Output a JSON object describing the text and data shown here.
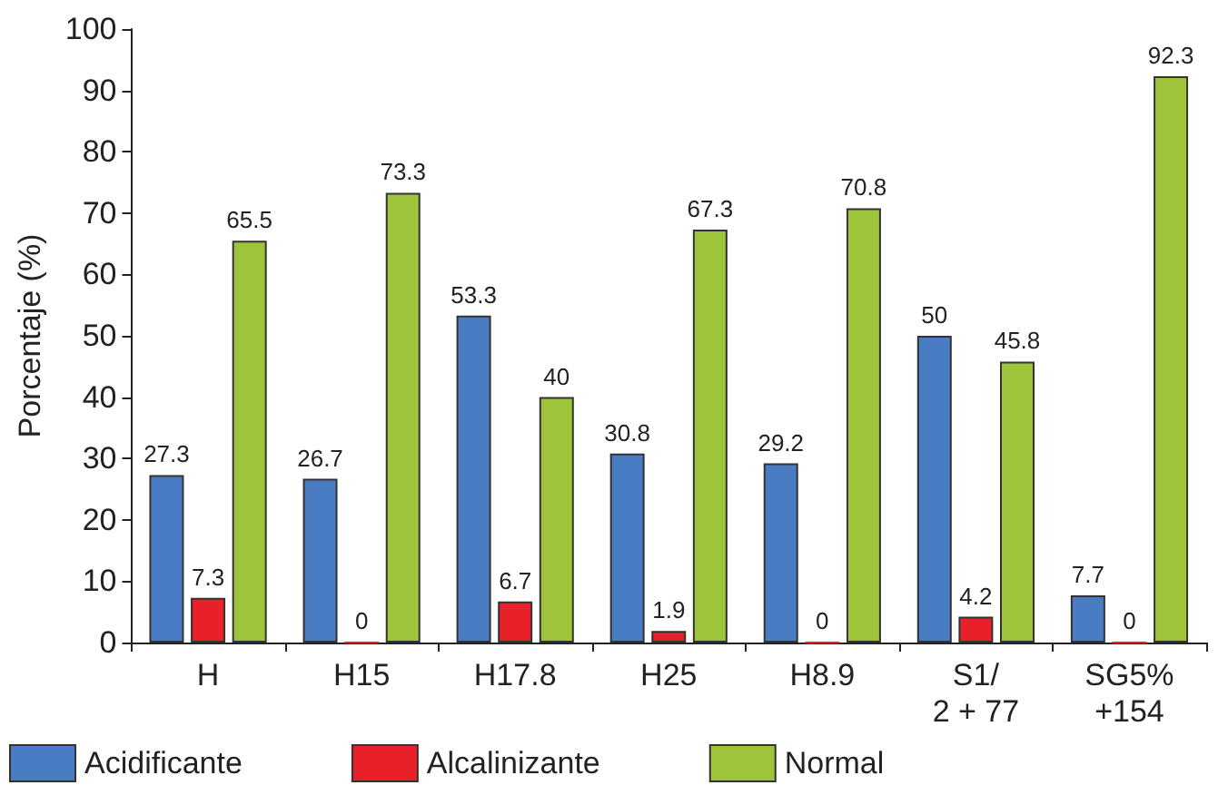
{
  "chart_data": {
    "type": "bar",
    "ylabel": "Porcentaje (%)",
    "categories": [
      "H",
      "H15",
      "H17.8",
      "H25",
      "H8.9",
      "S1/\n2 + 77",
      "SG5%\n+154"
    ],
    "series": [
      {
        "name": "Acidificante",
        "color": "#4a7cc4",
        "values": [
          27.3,
          26.7,
          53.3,
          30.8,
          29.2,
          50,
          7.7
        ]
      },
      {
        "name": "Alcalinizante",
        "color": "#e8202a",
        "values": [
          7.3,
          0,
          6.7,
          1.9,
          0,
          4.2,
          0
        ]
      },
      {
        "name": "Normal",
        "color": "#9dc43a",
        "values": [
          65.5,
          73.3,
          40,
          67.3,
          70.8,
          45.8,
          92.3
        ]
      }
    ],
    "ylim": [
      0,
      100
    ],
    "yticks": [
      0,
      10,
      20,
      30,
      40,
      50,
      60,
      70,
      80,
      90,
      100
    ],
    "grid": false,
    "legend": "bottom",
    "data_labels": true
  }
}
